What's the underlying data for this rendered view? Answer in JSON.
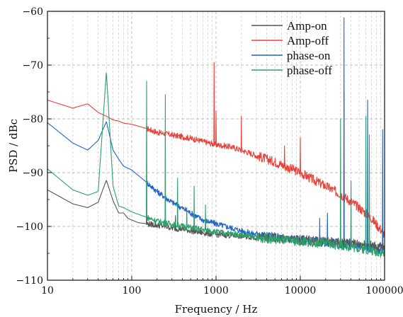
{
  "chart_data": {
    "type": "line",
    "title": "",
    "xlabel": "Frequency / Hz",
    "ylabel": "PSD / dBc",
    "xscale": "log",
    "xlim": [
      10,
      100000
    ],
    "ylim": [
      -110,
      -60
    ],
    "xticks": [
      10,
      100,
      1000,
      10000,
      100000
    ],
    "xtick_labels": [
      "10",
      "100",
      "1000",
      "10000",
      "100000"
    ],
    "yticks": [
      -110,
      -100,
      -90,
      -80,
      -70,
      -60
    ],
    "ytick_labels": [
      "−110",
      "−100",
      "−90",
      "−80",
      "−70",
      "−60"
    ],
    "grid": "dashed, major and minor on x, major on y",
    "legend_position": "top-right",
    "series": [
      {
        "name": "Amp-on",
        "color": "#555555",
        "x": [
          10,
          20,
          30,
          40,
          50,
          60,
          70,
          80,
          90,
          100,
          120,
          150,
          200,
          250,
          300,
          400,
          500,
          700,
          1000,
          2000,
          3000,
          5000,
          7000,
          10000,
          20000,
          30000,
          50000,
          70000,
          100000
        ],
        "y": [
          -93.2,
          -95.8,
          -96.5,
          -95.5,
          -91.4,
          -95.2,
          -97.5,
          -97.5,
          -98.5,
          -98.8,
          -99.3,
          -99.5,
          -99.8,
          -100,
          -100.3,
          -100.5,
          -100.8,
          -101.2,
          -101.5,
          -101.8,
          -102,
          -102.2,
          -102.4,
          -102.5,
          -102.8,
          -103,
          -103.2,
          -103.5,
          -104
        ]
      },
      {
        "name": "Amp-off",
        "color": "#e8403a",
        "x": [
          10,
          20,
          30,
          40,
          50,
          60,
          70,
          80,
          100,
          150,
          200,
          300,
          500,
          700,
          1000,
          1500,
          2000,
          3000,
          5000,
          7000,
          10000,
          15000,
          20000,
          30000,
          50000,
          70000,
          100000
        ],
        "y": [
          -76.5,
          -78,
          -77.2,
          -78.8,
          -79.5,
          -80.2,
          -80.4,
          -80.8,
          -81,
          -81.8,
          -82.5,
          -83,
          -83.6,
          -84.2,
          -84.8,
          -85.2,
          -85.8,
          -86.8,
          -88,
          -89,
          -90,
          -91.5,
          -92.5,
          -94,
          -96.5,
          -98.5,
          -101.5
        ]
      },
      {
        "name": "phase-on",
        "color": "#1f66c8",
        "x": [
          10,
          20,
          30,
          40,
          50,
          60,
          70,
          80,
          100,
          150,
          200,
          300,
          500,
          700,
          1000,
          2000,
          3000,
          5000,
          10000,
          20000,
          30000,
          50000,
          70000,
          100000
        ],
        "y": [
          -80.7,
          -84.5,
          -85.8,
          -84,
          -80.5,
          -85.8,
          -87.5,
          -88.8,
          -89.5,
          -91.8,
          -93.5,
          -95.5,
          -97.5,
          -98.8,
          -99.5,
          -100.8,
          -101.5,
          -102,
          -102.5,
          -103,
          -103.2,
          -103.5,
          -104,
          -104.5
        ]
      },
      {
        "name": "phase-off",
        "color": "#2aa268",
        "x": [
          10,
          20,
          30,
          40,
          50,
          60,
          70,
          80,
          100,
          150,
          200,
          300,
          500,
          700,
          1000,
          2000,
          3000,
          5000,
          10000,
          20000,
          30000,
          50000,
          70000,
          100000
        ],
        "y": [
          -89.3,
          -93.2,
          -94.2,
          -93.5,
          -71.2,
          -92.5,
          -96.2,
          -96.5,
          -97.3,
          -98.3,
          -99,
          -99.6,
          -100.2,
          -100.6,
          -101,
          -101.6,
          -102,
          -102.4,
          -102.8,
          -103.2,
          -103.5,
          -104,
          -104.5,
          -105
        ]
      }
    ],
    "spurs": [
      {
        "series": "Amp-off",
        "f": 950,
        "top": -69.5
      },
      {
        "series": "Amp-off",
        "f": 1000,
        "top": -78.5
      },
      {
        "series": "Amp-off",
        "f": 2000,
        "top": -79.5
      },
      {
        "series": "Amp-off",
        "f": 6500,
        "top": -85
      },
      {
        "series": "Amp-off",
        "f": 10000,
        "top": -83.5
      },
      {
        "series": "Amp-off",
        "f": 33000,
        "top": -75
      },
      {
        "series": "phase-on",
        "f": 33000,
        "top": -61.2
      },
      {
        "series": "phase-on",
        "f": 63000,
        "top": -76.5
      },
      {
        "series": "phase-on",
        "f": 95000,
        "top": -82
      },
      {
        "series": "phase-on",
        "f": 21000,
        "top": -97.5
      },
      {
        "series": "phase-on",
        "f": 17000,
        "top": -98.5
      },
      {
        "series": "phase-off",
        "f": 150,
        "top": -73
      },
      {
        "series": "phase-off",
        "f": 250,
        "top": -75.5
      },
      {
        "series": "phase-off",
        "f": 350,
        "top": -91
      },
      {
        "series": "phase-off",
        "f": 450,
        "top": -96.5
      },
      {
        "series": "phase-off",
        "f": 550,
        "top": -92.5
      },
      {
        "series": "phase-off",
        "f": 750,
        "top": -96
      },
      {
        "series": "phase-off",
        "f": 30000,
        "top": -80
      },
      {
        "series": "phase-off",
        "f": 40000,
        "top": -91.5
      },
      {
        "series": "phase-off",
        "f": 60000,
        "top": -79.5
      },
      {
        "series": "phase-off",
        "f": 66000,
        "top": -83
      },
      {
        "series": "Amp-on",
        "f": 150,
        "top": -97.5
      },
      {
        "series": "Amp-on",
        "f": 250,
        "top": -98.5
      },
      {
        "series": "Amp-on",
        "f": 330,
        "top": -98
      }
    ]
  }
}
